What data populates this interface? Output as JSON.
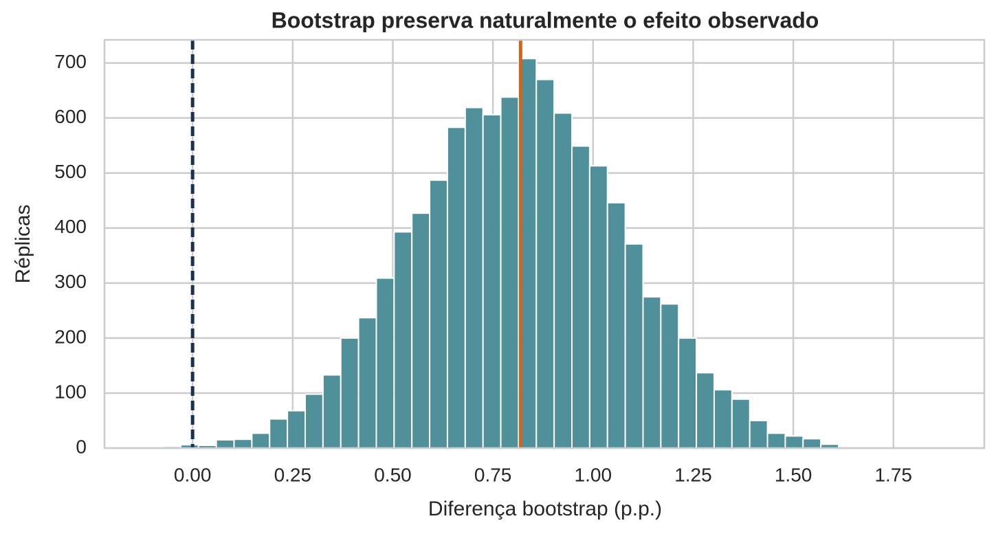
{
  "chart_data": {
    "type": "histogram",
    "title": "Bootstrap preserva naturalmente o efeito observado",
    "xlabel": "Diferença bootstrap (p.p.)",
    "ylabel": "Réplicas",
    "bins": [
      -0.074,
      -0.0296,
      0.0148,
      0.0592,
      0.1036,
      0.148,
      0.1924,
      0.2368,
      0.2812,
      0.3256,
      0.37,
      0.4144,
      0.4588,
      0.5032,
      0.5476,
      0.592,
      0.6364,
      0.6808,
      0.7252,
      0.7696,
      0.814,
      0.8584,
      0.9028,
      0.9472,
      0.9916,
      1.036,
      1.0804,
      1.1248,
      1.1692,
      1.2136,
      1.258,
      1.3024,
      1.3468,
      1.3912,
      1.4356,
      1.48,
      1.5244,
      1.5688,
      1.6132
    ],
    "values": [
      3,
      6,
      5,
      15,
      16,
      27,
      53,
      68,
      98,
      133,
      200,
      237,
      309,
      393,
      427,
      487,
      583,
      619,
      606,
      638,
      708,
      670,
      609,
      549,
      513,
      446,
      371,
      275,
      262,
      200,
      137,
      106,
      89,
      50,
      27,
      22,
      17,
      7
    ],
    "color": "#4b8e98",
    "vlines": [
      {
        "x": 0,
        "color": "#1c3150",
        "style": "dashed"
      },
      {
        "x": 0.819,
        "color": "#d9620f",
        "style": "solid"
      }
    ],
    "xlim": [
      -0.22,
      1.977
    ],
    "ylim": [
      0,
      742
    ],
    "xticks": [
      {
        "value": 0,
        "label": "0.00"
      },
      0.25,
      {
        "value": 0.5,
        "label": "0.50"
      },
      0.75,
      {
        "value": 1,
        "label": "1.00"
      },
      1.25,
      {
        "value": 1.5,
        "label": "1.50"
      },
      1.75
    ],
    "yticks": [
      0,
      100,
      200,
      300,
      400,
      500,
      600,
      700
    ],
    "grid": true
  }
}
